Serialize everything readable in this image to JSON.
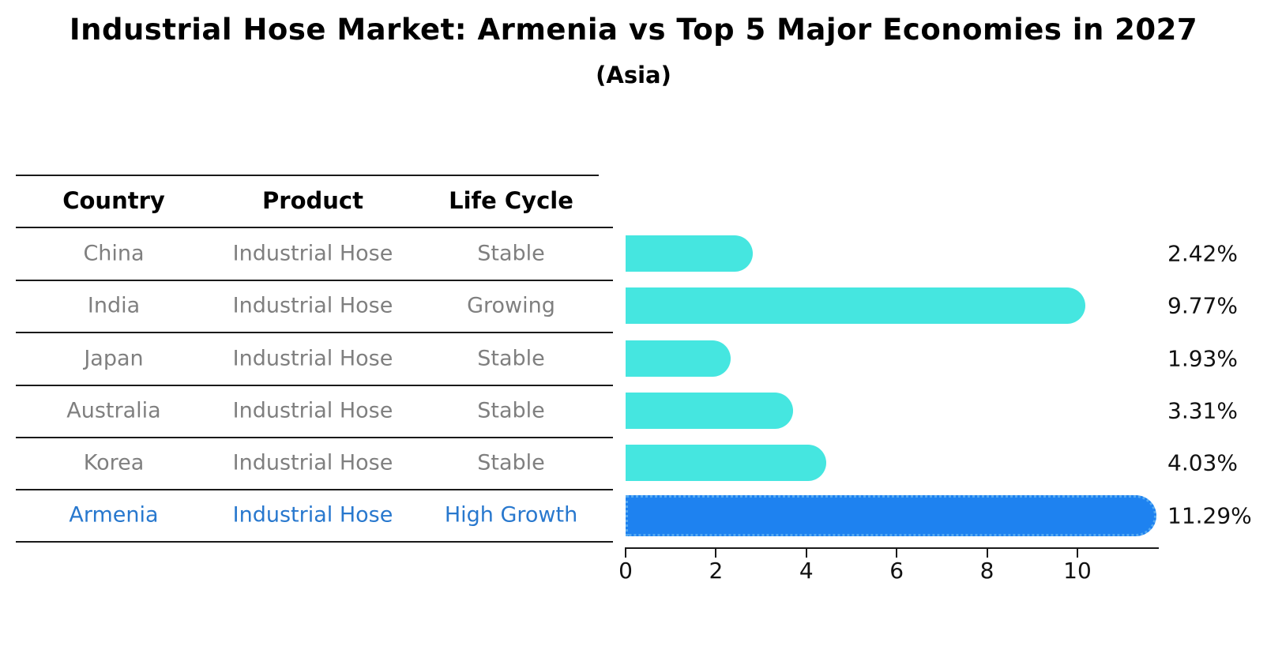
{
  "title": "Industrial Hose Market: Armenia vs Top 5 Major Economies in 2027",
  "subtitle": "(Asia)",
  "table": {
    "headers": [
      "Country",
      "Product",
      "Life Cycle"
    ],
    "rows": [
      {
        "country": "China",
        "product": "Industrial Hose",
        "life_cycle": "Stable"
      },
      {
        "country": "India",
        "product": "Industrial Hose",
        "life_cycle": "Growing"
      },
      {
        "country": "Japan",
        "product": "Industrial Hose",
        "life_cycle": "Stable"
      },
      {
        "country": "Australia",
        "product": "Industrial Hose",
        "life_cycle": "Stable"
      },
      {
        "country": "Korea",
        "product": "Industrial Hose",
        "life_cycle": "Stable"
      },
      {
        "country": "Armenia",
        "product": "Industrial Hose",
        "life_cycle": "High Growth"
      }
    ],
    "highlighted_row": "Armenia"
  },
  "chart_data": {
    "type": "bar",
    "orientation": "horizontal",
    "categories": [
      "China",
      "India",
      "Japan",
      "Australia",
      "Korea",
      "Armenia"
    ],
    "values": [
      2.42,
      9.77,
      1.93,
      3.31,
      4.03,
      11.29
    ],
    "value_labels": [
      "2.42%",
      "9.77%",
      "1.93%",
      "3.31%",
      "4.03%",
      "11.29%"
    ],
    "title": "",
    "xlabel": "",
    "ylabel": "",
    "xlim": [
      0,
      11.8
    ],
    "xticks": [
      "0",
      "2",
      "4",
      "6",
      "8",
      "10"
    ],
    "grid": false,
    "legend": false,
    "highlight_index": 5
  },
  "colors": {
    "background": "#FFFFFF",
    "title_text": "#000000",
    "table_text": "#7F7F7F",
    "highlight_text": "#2878CE",
    "axis": "#1A1A1A",
    "bar": "#45E6E0",
    "highlight_bar": "#1E82F0",
    "highlight_bar_border": "#56AAF2"
  }
}
